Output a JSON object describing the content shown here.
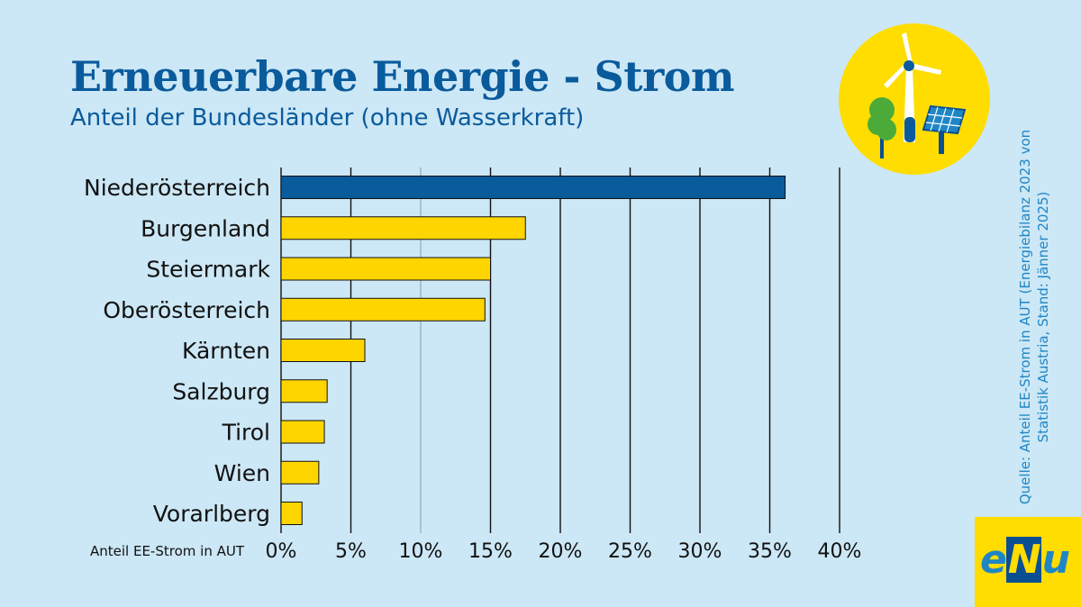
{
  "header": {
    "title": "Erneuerbare Energie - Strom",
    "subtitle": "Anteil der Bundesländer (ohne Wasserkraft)"
  },
  "source_note": "Quelle: Anteil EE-Strom in AUT (Energiebilanz 2023 von Statistik Austria, Stand: Jänner 2025)",
  "logo": {
    "pre": "e",
    "mid": "N",
    "post": "u"
  },
  "colors": {
    "background": "#cce7f5",
    "highlight": "#0a5b9c",
    "bar": "#ffd500",
    "title": "#0a5b9c",
    "source": "#1f86c6"
  },
  "icons": [
    "sun-circle-icon",
    "wind-turbine-icon",
    "tree-icon",
    "solar-panel-icon"
  ],
  "chart_data": {
    "type": "bar",
    "orientation": "horizontal",
    "categories": [
      "Niederösterreich",
      "Burgenland",
      "Steiermark",
      "Oberösterreich",
      "Kärnten",
      "Salzburg",
      "Tirol",
      "Wien",
      "Vorarlberg"
    ],
    "values": [
      36.1,
      17.5,
      15.0,
      14.6,
      6.0,
      3.3,
      3.1,
      2.7,
      1.5
    ],
    "highlight_index": 0,
    "xlabel": "Anteil EE-Strom in AUT",
    "xlim": [
      0,
      40
    ],
    "xticks": [
      "0%",
      "5%",
      "10%",
      "15%",
      "20%",
      "25%",
      "30%",
      "35%",
      "40%"
    ],
    "grid": true
  }
}
